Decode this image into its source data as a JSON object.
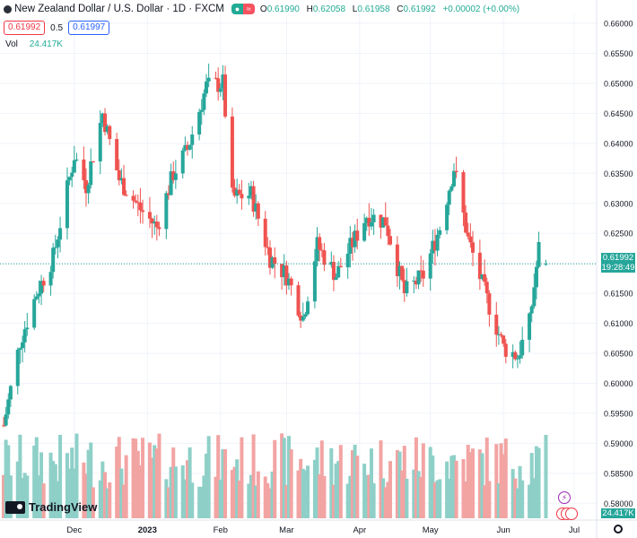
{
  "header": {
    "symbol_title": "New Zealand Dollar / U.S. Dollar · 1D · FXCM",
    "open_label": "O",
    "open": "0.61990",
    "high_label": "H",
    "high": "0.62058",
    "low_label": "L",
    "low": "0.61958",
    "close_label": "C",
    "close": "0.61992",
    "change": "+0.00002 (+0.00%)",
    "sell_price": "0.61992",
    "spread": "0.5",
    "buy_price": "0.61997",
    "vol_label": "Vol",
    "vol_value": "24.417K"
  },
  "price_tag": {
    "price": "0.61992",
    "countdown": "19:28:49"
  },
  "volume_tag": "24.417K",
  "brand": "TradingView",
  "colors": {
    "up": "#26a69a",
    "down": "#ef5350",
    "up_vol": "#8ed0c8",
    "down_vol": "#f2a4a3",
    "grid": "#f0f3fa",
    "last_line": "#26a69a"
  },
  "chart_data": {
    "type": "candlestick",
    "title": "New Zealand Dollar / U.S. Dollar · 1D · FXCM",
    "y_axis_ticks": [
      "0.66000",
      "0.65500",
      "0.65000",
      "0.64500",
      "0.64000",
      "0.63500",
      "0.63000",
      "0.62500",
      "0.62000",
      "0.61500",
      "0.61000",
      "0.60500",
      "0.60000",
      "0.59500",
      "0.59000",
      "0.58500",
      "0.58000"
    ],
    "ylim": [
      0.5775,
      0.6615
    ],
    "x_axis_labels": [
      "Dec",
      "2023",
      "Feb",
      "Mar",
      "Apr",
      "May",
      "Jun",
      "Jul"
    ],
    "last_price": 0.61992,
    "anchors": [
      {
        "date": "2022-11-01",
        "price": 0.593
      },
      {
        "date": "2022-11-08",
        "price": 0.607
      },
      {
        "date": "2022-11-15",
        "price": 0.615
      },
      {
        "date": "2022-11-22",
        "price": 0.621
      },
      {
        "date": "2022-12-01",
        "price": 0.638
      },
      {
        "date": "2022-12-06",
        "price": 0.633
      },
      {
        "date": "2022-12-13",
        "price": 0.645
      },
      {
        "date": "2022-12-20",
        "price": 0.634
      },
      {
        "date": "2022-12-29",
        "price": 0.629
      },
      {
        "date": "2023-01-05",
        "price": 0.626
      },
      {
        "date": "2023-01-12",
        "price": 0.635
      },
      {
        "date": "2023-01-18",
        "price": 0.639
      },
      {
        "date": "2023-01-26",
        "price": 0.6495
      },
      {
        "date": "2023-02-02",
        "price": 0.65
      },
      {
        "date": "2023-02-06",
        "price": 0.631
      },
      {
        "date": "2023-02-14",
        "price": 0.6315
      },
      {
        "date": "2023-02-22",
        "price": 0.621
      },
      {
        "date": "2023-03-01",
        "price": 0.618
      },
      {
        "date": "2023-03-08",
        "price": 0.611
      },
      {
        "date": "2023-03-14",
        "price": 0.623
      },
      {
        "date": "2023-03-22",
        "price": 0.618
      },
      {
        "date": "2023-04-04",
        "price": 0.628
      },
      {
        "date": "2023-04-12",
        "price": 0.627
      },
      {
        "date": "2023-04-20",
        "price": 0.615
      },
      {
        "date": "2023-04-28",
        "price": 0.618
      },
      {
        "date": "2023-05-05",
        "price": 0.626
      },
      {
        "date": "2023-05-11",
        "price": 0.636
      },
      {
        "date": "2023-05-17",
        "price": 0.624
      },
      {
        "date": "2023-05-25",
        "price": 0.614
      },
      {
        "date": "2023-06-01",
        "price": 0.606
      },
      {
        "date": "2023-06-07",
        "price": 0.6045
      },
      {
        "date": "2023-06-12",
        "price": 0.61
      },
      {
        "date": "2023-06-16",
        "price": 0.6225
      },
      {
        "date": "2023-06-19",
        "price": 0.6199
      }
    ]
  }
}
